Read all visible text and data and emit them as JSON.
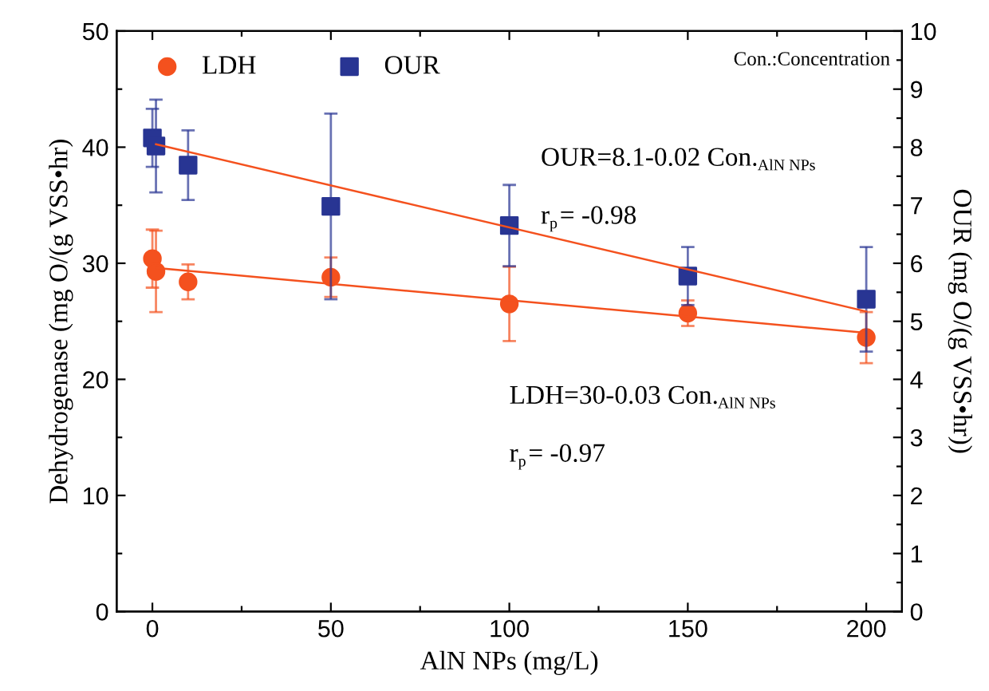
{
  "chart_data": {
    "type": "scatter",
    "xlabel": "AlN NPs (mg/L)",
    "ylabel": "Dehydrogenase (mg O/(g VSS•hr)",
    "y2label": "OUR (mg O/(g VSS•hr))",
    "annotations": [
      "Con.:Concentration",
      "OUR=8.1-0.02 Con.$_{AlN NPs}$",
      "r$_{p}$= -0.98",
      "LDH=30-0.03 Con.$_{AlN NPs}$",
      "r$_{p}$= -0.97"
    ],
    "xlim": [
      -10,
      210
    ],
    "xticks": [
      0,
      {
        "value": 25,
        "label": null
      },
      50,
      {
        "value": 75,
        "label": null
      },
      100,
      {
        "value": 125,
        "label": null
      },
      150,
      {
        "value": 175,
        "label": null
      },
      200
    ],
    "ylim": [
      0,
      50
    ],
    "yticks": [
      0,
      {
        "value": 5,
        "label": null
      },
      10,
      {
        "value": 15,
        "label": null
      },
      20,
      {
        "value": 25,
        "label": null
      },
      30,
      {
        "value": 35,
        "label": null
      },
      40,
      {
        "value": 45,
        "label": null
      },
      50
    ],
    "y2lim": [
      0,
      10
    ],
    "y2ticks": [
      0,
      {
        "value": 0.5,
        "label": null
      },
      1,
      {
        "value": 1.5,
        "label": null
      },
      2,
      {
        "value": 2.5,
        "label": null
      },
      3,
      {
        "value": 3.5,
        "label": null
      },
      4,
      {
        "value": 4.5,
        "label": null
      },
      5,
      {
        "value": 5.5,
        "label": null
      },
      6,
      {
        "value": 6.5,
        "label": null
      },
      7,
      {
        "value": 7.5,
        "label": null
      },
      8,
      {
        "value": 8.5,
        "label": null
      },
      9,
      {
        "value": 9.5,
        "label": null
      },
      10
    ],
    "grid": false,
    "legend": "top left",
    "series": [
      {
        "name": "LDH",
        "color": "#f4511e",
        "marker": "circle",
        "x": [
          0,
          1,
          10,
          50,
          100,
          150,
          200
        ],
        "values": [
          30.4,
          29.3,
          28.4,
          28.8,
          26.5,
          25.7,
          23.6
        ],
        "errors": [
          2.5,
          3.5,
          1.5,
          1.7,
          3.2,
          1.1,
          2.2
        ]
      },
      {
        "name": "OUR",
        "color": "#283593",
        "marker": "square",
        "axis": "y2",
        "x": [
          0,
          1,
          10,
          50,
          100,
          150,
          200
        ],
        "values": [
          8.16,
          8.02,
          7.69,
          6.98,
          6.65,
          5.78,
          5.38
        ],
        "errors": [
          0.5,
          0.8,
          0.6,
          1.6,
          0.7,
          0.5,
          0.9
        ]
      },
      {
        "type": "line",
        "color": "#f4511e",
        "marker": "none",
        "x": [
          1,
          200
        ],
        "values": [
          29.6,
          24.0
        ]
      },
      {
        "type": "line",
        "color": "#f4511e",
        "marker": "none",
        "axis": "y2",
        "x": [
          1,
          200
        ],
        "values": [
          8.05,
          5.17
        ]
      }
    ]
  }
}
